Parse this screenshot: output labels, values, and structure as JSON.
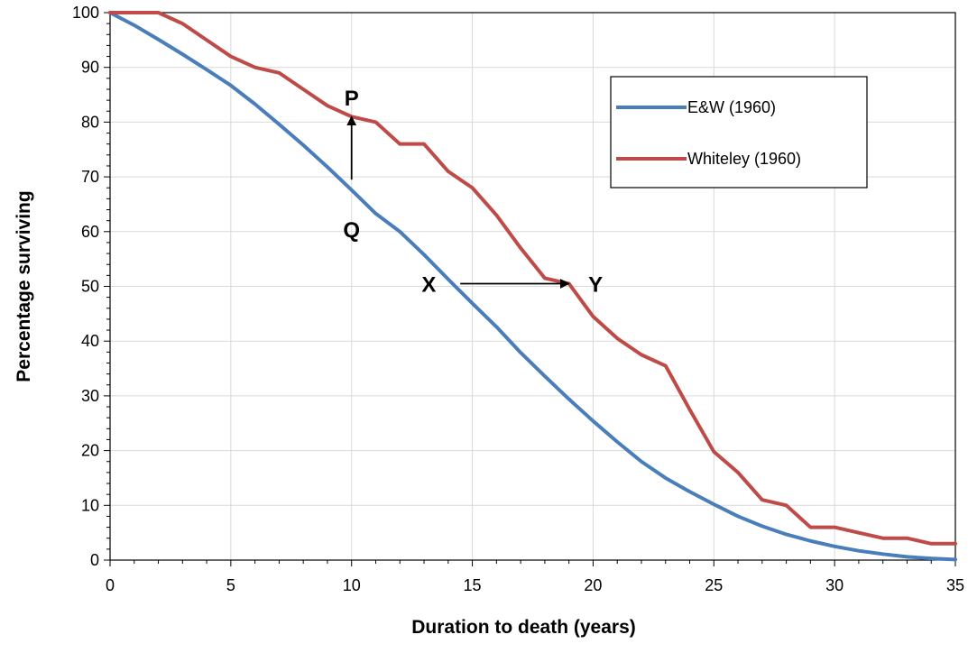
{
  "chart_data": {
    "type": "line",
    "xlabel": "Duration to death (years)",
    "ylabel": "Percentage  surviving",
    "xlim": [
      0,
      35
    ],
    "ylim": [
      0,
      100
    ],
    "x_ticks": [
      0,
      5,
      10,
      15,
      20,
      25,
      30,
      35
    ],
    "y_ticks": [
      0,
      10,
      20,
      30,
      40,
      50,
      60,
      70,
      80,
      90,
      100
    ],
    "grid": true,
    "legend_position": "top-right",
    "series": [
      {
        "name": "E&W (1960)",
        "color": "#4a7ebb",
        "x": [
          0,
          1,
          2,
          3,
          4,
          5,
          6,
          7,
          8,
          9,
          10,
          11,
          12,
          13,
          14,
          15,
          16,
          17,
          18,
          19,
          20,
          21,
          22,
          23,
          24,
          25,
          26,
          27,
          28,
          29,
          30,
          31,
          32,
          33,
          34,
          35
        ],
        "values": [
          100,
          97.7,
          95.1,
          92.4,
          89.6,
          86.7,
          83.3,
          79.6,
          75.8,
          71.8,
          67.6,
          63.3,
          60.0,
          55.8,
          51.3,
          46.9,
          42.6,
          37.9,
          33.6,
          29.4,
          25.4,
          21.6,
          18.0,
          15.0,
          12.5,
          10.2,
          8.0,
          6.2,
          4.7,
          3.5,
          2.5,
          1.7,
          1.1,
          0.6,
          0.3,
          0.1
        ]
      },
      {
        "name": "Whiteley (1960)",
        "color": "#be4b48",
        "x": [
          0,
          1,
          2,
          3,
          4,
          5,
          6,
          7,
          8,
          9,
          10,
          11,
          12,
          13,
          14,
          15,
          16,
          17,
          18,
          19,
          20,
          21,
          22,
          23,
          24,
          25,
          26,
          27,
          28,
          29,
          30,
          31,
          32,
          33,
          34,
          35
        ],
        "values": [
          100,
          100,
          100,
          98,
          95,
          92,
          90,
          89,
          86,
          83,
          81,
          80,
          76,
          76,
          71,
          68,
          63,
          57,
          51.5,
          50.5,
          44.5,
          40.5,
          37.5,
          35.5,
          27.5,
          19.8,
          16.0,
          11.0,
          10.0,
          6.0,
          6.0,
          5.0,
          4.0,
          4.0,
          3.0,
          3.0
        ]
      }
    ],
    "annotations": [
      {
        "text": "P",
        "x": 10,
        "y": 84.5
      },
      {
        "text": "Q",
        "x": 10,
        "y": 60.5
      },
      {
        "text": "X",
        "x": 13.2,
        "y": 50.5
      },
      {
        "text": "Y",
        "x": 20.1,
        "y": 50.5
      }
    ],
    "arrows": [
      {
        "from": [
          10,
          69.5
        ],
        "to": [
          10,
          81
        ]
      },
      {
        "from": [
          14.5,
          50.5
        ],
        "to": [
          19,
          50.5
        ]
      }
    ]
  }
}
